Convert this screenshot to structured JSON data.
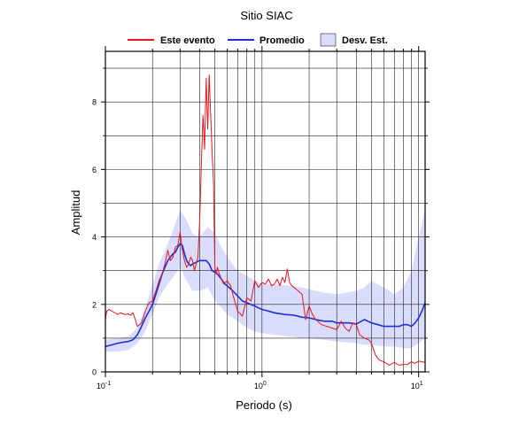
{
  "chart_data": {
    "type": "line",
    "title": "Sitio SIAC",
    "xlabel": "Periodo (s)",
    "ylabel": "Amplitud",
    "xscale": "log",
    "xlim": [
      0.1,
      11
    ],
    "ylim": [
      0,
      9.5
    ],
    "x_ticks": [
      {
        "value": 0.1,
        "base": "10",
        "exp": "-1"
      },
      {
        "value": 1,
        "base": "10",
        "exp": "0"
      },
      {
        "value": 10,
        "base": "10",
        "exp": "1"
      }
    ],
    "y_ticks": [
      0,
      2,
      4,
      6,
      8
    ],
    "grid": true,
    "legend_position": "top",
    "legend": [
      {
        "label": "Este evento",
        "kind": "line",
        "color": "#e8171f"
      },
      {
        "label": "Promedio",
        "kind": "line",
        "color": "#1f2fd6"
      },
      {
        "label": "Desv. Est.",
        "kind": "band",
        "color": "#d9dcfa"
      }
    ],
    "band": {
      "name": "Desv. Est.",
      "color": "#d9dcfa",
      "x": [
        0.1,
        0.12,
        0.14,
        0.16,
        0.18,
        0.2,
        0.22,
        0.25,
        0.28,
        0.3,
        0.33,
        0.36,
        0.4,
        0.45,
        0.5,
        0.55,
        0.6,
        0.7,
        0.8,
        0.9,
        1.0,
        1.2,
        1.5,
        1.8,
        2.0,
        2.5,
        3.0,
        4.0,
        4.5,
        5.0,
        6.0,
        7.0,
        8.0,
        9.0,
        10.0,
        11.0
      ],
      "upper": [
        0.95,
        1.0,
        1.05,
        1.3,
        1.9,
        2.6,
        3.2,
        3.8,
        4.4,
        4.8,
        4.5,
        4.1,
        4.0,
        4.3,
        4.1,
        3.7,
        3.4,
        3.0,
        2.85,
        2.7,
        2.6,
        2.6,
        2.55,
        2.5,
        2.45,
        2.35,
        2.3,
        2.4,
        2.5,
        2.7,
        2.5,
        2.3,
        2.5,
        3.0,
        4.0,
        4.8
      ],
      "lower": [
        0.6,
        0.6,
        0.65,
        0.85,
        1.2,
        1.7,
        2.2,
        2.6,
        2.9,
        3.1,
        2.7,
        2.4,
        2.4,
        2.5,
        2.1,
        1.9,
        1.7,
        1.5,
        1.3,
        1.2,
        1.15,
        1.1,
        1.05,
        1.0,
        1.0,
        0.95,
        0.9,
        0.85,
        0.8,
        0.8,
        0.75,
        0.75,
        0.7,
        0.7,
        0.85,
        1.0
      ]
    },
    "series": [
      {
        "name": "Promedio",
        "color": "#1f2fd6",
        "x": [
          0.1,
          0.11,
          0.12,
          0.13,
          0.14,
          0.15,
          0.16,
          0.17,
          0.18,
          0.19,
          0.2,
          0.21,
          0.22,
          0.23,
          0.24,
          0.25,
          0.26,
          0.27,
          0.28,
          0.29,
          0.3,
          0.31,
          0.32,
          0.33,
          0.34,
          0.35,
          0.36,
          0.38,
          0.4,
          0.42,
          0.44,
          0.46,
          0.48,
          0.5,
          0.52,
          0.55,
          0.58,
          0.6,
          0.65,
          0.7,
          0.75,
          0.8,
          0.9,
          1.0,
          1.1,
          1.2,
          1.4,
          1.6,
          1.8,
          2.0,
          2.2,
          2.5,
          2.8,
          3.0,
          3.3,
          3.6,
          4.0,
          4.5,
          5.0,
          5.5,
          6.0,
          6.5,
          7.0,
          7.5,
          8.0,
          8.5,
          9.0,
          9.5,
          10.0,
          10.5,
          11.0
        ],
        "y": [
          0.75,
          0.8,
          0.85,
          0.88,
          0.9,
          0.95,
          1.1,
          1.35,
          1.6,
          1.8,
          2.0,
          2.3,
          2.6,
          2.9,
          3.1,
          3.3,
          3.4,
          3.5,
          3.55,
          3.7,
          3.8,
          3.75,
          3.5,
          3.3,
          3.2,
          3.15,
          3.2,
          3.25,
          3.3,
          3.3,
          3.3,
          3.2,
          3.0,
          2.95,
          2.9,
          2.75,
          2.6,
          2.55,
          2.4,
          2.25,
          2.1,
          2.05,
          1.95,
          1.85,
          1.8,
          1.75,
          1.7,
          1.68,
          1.62,
          1.6,
          1.55,
          1.5,
          1.5,
          1.45,
          1.45,
          1.45,
          1.42,
          1.55,
          1.45,
          1.4,
          1.35,
          1.35,
          1.35,
          1.35,
          1.4,
          1.4,
          1.35,
          1.45,
          1.6,
          1.8,
          2.05
        ]
      },
      {
        "name": "Este evento",
        "color": "#e8171f",
        "x": [
          0.1,
          0.102,
          0.105,
          0.11,
          0.115,
          0.12,
          0.125,
          0.13,
          0.135,
          0.14,
          0.145,
          0.15,
          0.155,
          0.16,
          0.17,
          0.18,
          0.19,
          0.2,
          0.21,
          0.22,
          0.23,
          0.24,
          0.25,
          0.26,
          0.27,
          0.28,
          0.29,
          0.3,
          0.31,
          0.32,
          0.33,
          0.34,
          0.35,
          0.36,
          0.37,
          0.38,
          0.39,
          0.4,
          0.41,
          0.42,
          0.43,
          0.44,
          0.45,
          0.46,
          0.47,
          0.48,
          0.49,
          0.5,
          0.51,
          0.52,
          0.53,
          0.55,
          0.57,
          0.6,
          0.63,
          0.66,
          0.7,
          0.75,
          0.8,
          0.85,
          0.9,
          0.95,
          1.0,
          1.05,
          1.1,
          1.15,
          1.2,
          1.25,
          1.3,
          1.35,
          1.4,
          1.45,
          1.5,
          1.55,
          1.6,
          1.7,
          1.8,
          1.9,
          2.0,
          2.1,
          2.2,
          2.4,
          2.6,
          2.8,
          3.0,
          3.2,
          3.4,
          3.6,
          3.8,
          4.0,
          4.2,
          4.5,
          4.8,
          5.0,
          5.3,
          5.6,
          6.0,
          6.5,
          7.0,
          7.5,
          8.0,
          8.5,
          9.0,
          9.5,
          10.0,
          10.5,
          11.0
        ],
        "y": [
          1.55,
          1.8,
          1.85,
          1.8,
          1.75,
          1.7,
          1.75,
          1.72,
          1.7,
          1.72,
          1.68,
          1.75,
          1.55,
          1.35,
          1.45,
          1.8,
          2.05,
          2.1,
          2.4,
          2.7,
          2.9,
          3.2,
          3.6,
          3.3,
          3.4,
          3.7,
          3.75,
          4.15,
          3.6,
          3.3,
          3.1,
          3.2,
          3.4,
          3.3,
          3.0,
          3.2,
          3.4,
          4.5,
          6.2,
          7.6,
          6.6,
          8.7,
          7.2,
          8.8,
          7.6,
          6.5,
          5.6,
          3.1,
          2.9,
          3.1,
          2.95,
          2.75,
          2.6,
          2.7,
          2.55,
          2.2,
          1.8,
          1.65,
          2.2,
          2.1,
          2.7,
          2.5,
          2.65,
          2.6,
          2.75,
          2.55,
          2.6,
          2.75,
          2.55,
          2.8,
          2.65,
          3.05,
          2.65,
          2.55,
          2.5,
          2.4,
          2.3,
          1.55,
          1.95,
          1.7,
          1.55,
          1.4,
          1.35,
          1.3,
          1.25,
          1.5,
          1.3,
          1.2,
          1.45,
          1.4,
          1.1,
          1.0,
          0.95,
          0.85,
          0.5,
          0.35,
          0.3,
          0.2,
          0.28,
          0.2,
          0.22,
          0.22,
          0.3,
          0.25,
          0.32,
          0.3,
          0.28
        ]
      }
    ]
  }
}
